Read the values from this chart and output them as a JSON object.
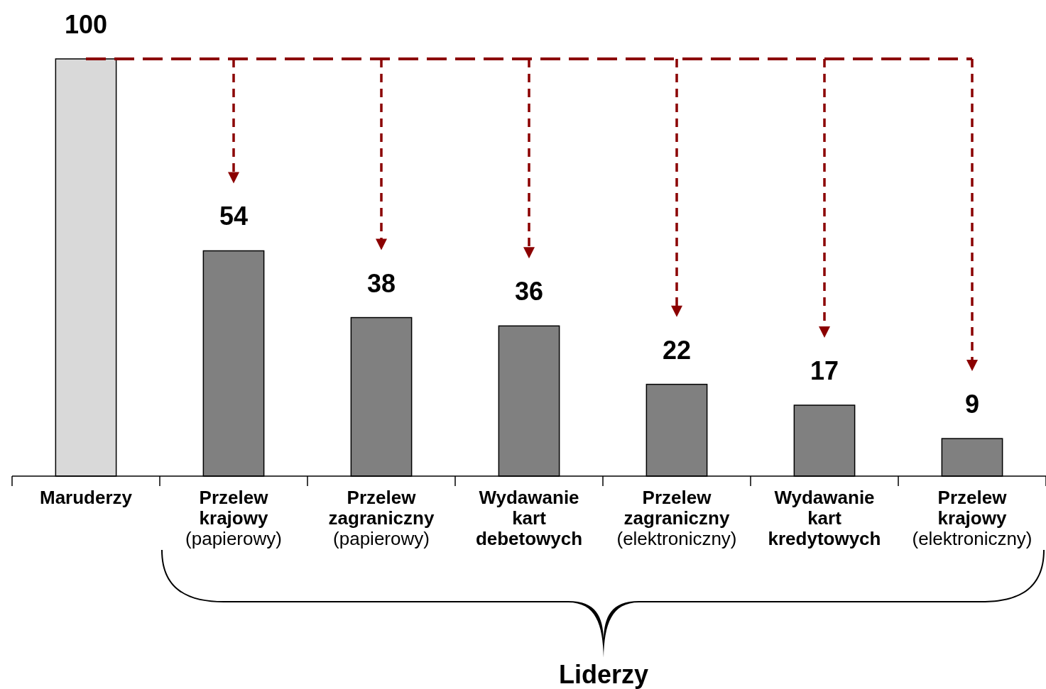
{
  "chart_data": {
    "type": "bar",
    "categories": [
      "Maruderzy",
      "Przelew krajowy (papierowy)",
      "Przelew zagraniczny (papierowy)",
      "Wydawanie kart debetowych",
      "Przelew zagraniczny (elektroniczny)",
      "Wydawanie kart kredytowych",
      "Przelew krajowy (elektroniczny)"
    ],
    "values": [
      100,
      54,
      38,
      36,
      22,
      17,
      9
    ],
    "colors": [
      "#d9d9d9",
      "#808080",
      "#808080",
      "#808080",
      "#808080",
      "#808080",
      "#808080"
    ],
    "data_labels": true,
    "annotations": [
      "Liderzy"
    ]
  }
}
